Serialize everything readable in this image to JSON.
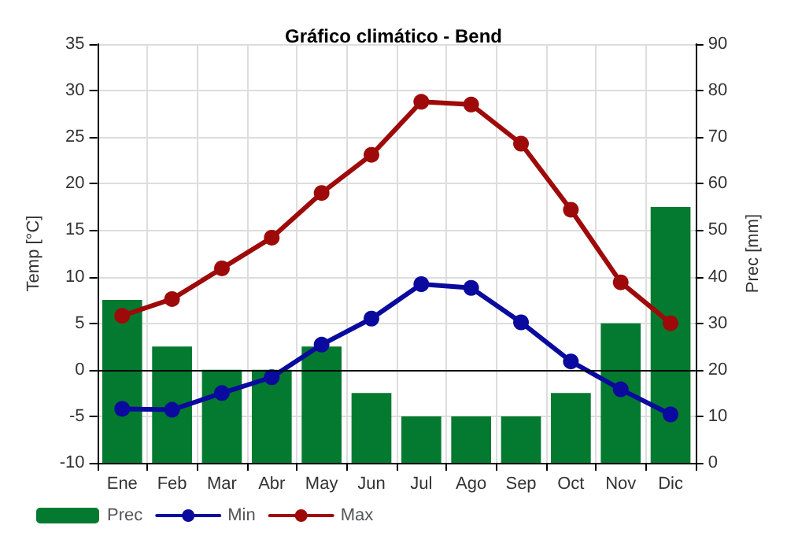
{
  "chart_data": {
    "type": "bar",
    "title": "Gráfico climático - Bend",
    "ylabel": "Temp [°C]",
    "y2label": "Prec [mm]",
    "categories": [
      "Ene",
      "Feb",
      "Mar",
      "Abr",
      "May",
      "Jun",
      "Jul",
      "Ago",
      "Sep",
      "Oct",
      "Nov",
      "Dic"
    ],
    "series": [
      {
        "name": "Prec",
        "type": "bar",
        "axis": "y2",
        "color": "#037a2f",
        "values": [
          35,
          25,
          20,
          20,
          25,
          15,
          10,
          10,
          10,
          15,
          30,
          55
        ]
      },
      {
        "name": "Min",
        "type": "line",
        "color": "#0a0a9e",
        "values": [
          -4.2,
          -4.3,
          -2.5,
          -0.8,
          2.7,
          5.5,
          9.2,
          8.8,
          5.1,
          0.9,
          -2.1,
          -4.8
        ]
      },
      {
        "name": "Max",
        "type": "line",
        "color": "#9e0a0a",
        "values": [
          5.8,
          7.6,
          10.9,
          14.2,
          19.0,
          23.1,
          28.8,
          28.5,
          24.3,
          17.2,
          9.4,
          5.0
        ]
      }
    ],
    "ylim": [
      -10,
      35
    ],
    "yticks": [
      -10,
      -5,
      0,
      5,
      10,
      15,
      20,
      25,
      30,
      35
    ],
    "y2lim": [
      0,
      90
    ],
    "y2ticks": [
      0,
      10,
      20,
      30,
      40,
      50,
      60,
      70,
      80,
      90
    ],
    "ref_lines": [
      {
        "axis": "y",
        "value": 0,
        "color": "#000000"
      }
    ],
    "grid": true,
    "legend": "bottom left",
    "marker": "circle",
    "line_style": "solid"
  }
}
